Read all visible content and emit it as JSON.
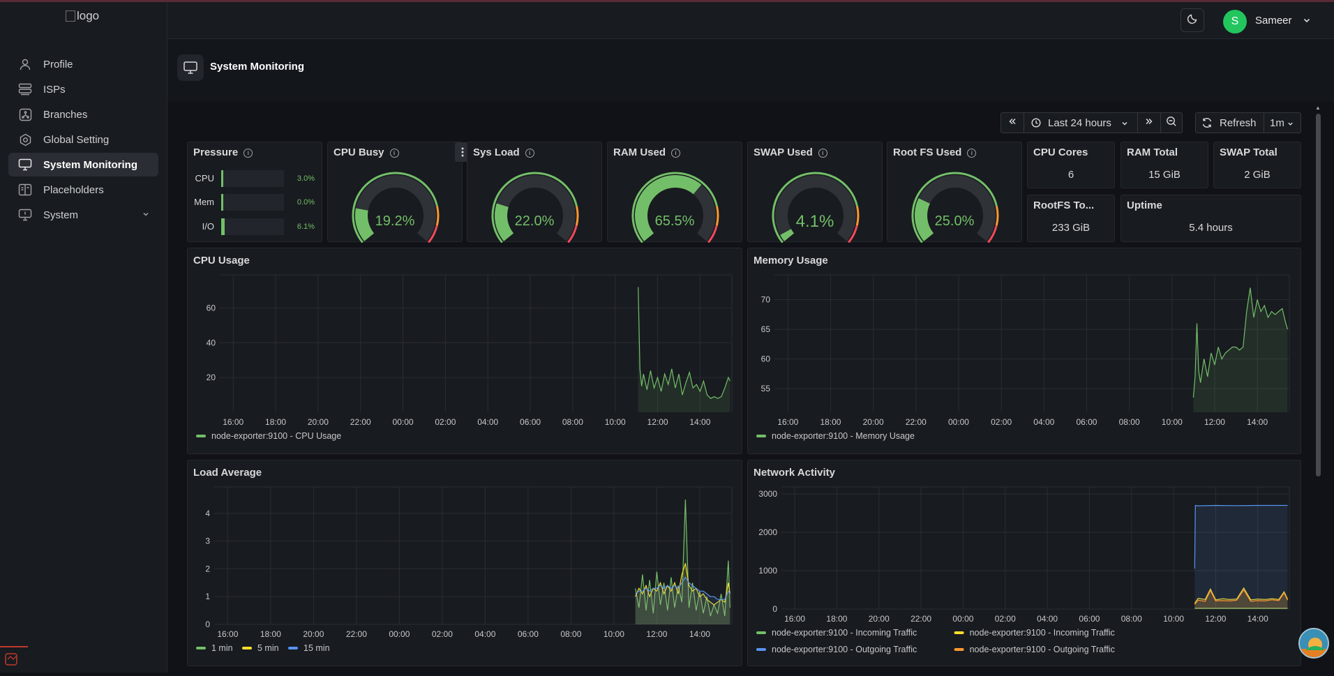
{
  "app": {
    "logo_alt": "logo",
    "user": {
      "initial": "S",
      "name": "Sameer"
    }
  },
  "sidebar": {
    "items": [
      {
        "label": "Profile",
        "icon": "user-icon"
      },
      {
        "label": "ISPs",
        "icon": "server-icon"
      },
      {
        "label": "Branches",
        "icon": "branches-icon"
      },
      {
        "label": "Global Setting",
        "icon": "gear-icon"
      },
      {
        "label": "System Monitoring",
        "icon": "monitor-icon",
        "active": true
      },
      {
        "label": "Placeholders",
        "icon": "placeholders-icon"
      },
      {
        "label": "System",
        "icon": "system-icon",
        "expandable": true
      }
    ]
  },
  "page": {
    "title": "System Monitoring"
  },
  "toolbar": {
    "time_range": "Last 24 hours",
    "refresh_label": "Refresh",
    "refresh_interval": "1m"
  },
  "pressure": {
    "title": "Pressure",
    "rows": [
      {
        "label": "CPU",
        "value": "3.0%",
        "fraction": 0.03
      },
      {
        "label": "Mem",
        "value": "0.0%",
        "fraction": 0.0
      },
      {
        "label": "I/O",
        "value": "6.1%",
        "fraction": 0.061
      }
    ]
  },
  "gauges": [
    {
      "title": "CPU Busy",
      "value": "19.2%",
      "fraction": 0.192
    },
    {
      "title": "Sys Load",
      "value": "22.0%",
      "fraction": 0.22
    },
    {
      "title": "RAM Used",
      "value": "65.5%",
      "fraction": 0.655
    },
    {
      "title": "SWAP Used",
      "value": "4.1%",
      "fraction": 0.041
    },
    {
      "title": "Root FS Used",
      "value": "25.0%",
      "fraction": 0.25
    }
  ],
  "stats": {
    "cpu_cores": {
      "title": "CPU Cores",
      "value": "6"
    },
    "ram_total": {
      "title": "RAM Total",
      "value": "15 GiB"
    },
    "swap_total": {
      "title": "SWAP Total",
      "value": "2 GiB"
    },
    "rootfs_total": {
      "title": "RootFS To...",
      "value": "233 GiB"
    },
    "uptime": {
      "title": "Uptime",
      "value": "5.4 hours"
    }
  },
  "colors": {
    "green": "#73bf69",
    "yellow": "#fade2a",
    "blue": "#5794f2",
    "orange": "#ff9830",
    "red": "#f2495c"
  },
  "chart_data": [
    {
      "type": "line",
      "title": "CPU Usage",
      "x_ticks": [
        "16:00",
        "18:00",
        "20:00",
        "22:00",
        "00:00",
        "02:00",
        "04:00",
        "06:00",
        "08:00",
        "10:00",
        "12:00",
        "14:00"
      ],
      "y_ticks": [
        20,
        40,
        60
      ],
      "ylim": [
        0,
        75
      ],
      "series": [
        {
          "name": "node-exporter:9100 - CPU Usage",
          "color": "#73bf69",
          "x": [
            "11:05",
            "11:10",
            "11:15",
            "11:20",
            "11:30",
            "11:40",
            "11:50",
            "12:00",
            "12:10",
            "12:20",
            "12:30",
            "12:40",
            "12:50",
            "13:00",
            "13:10",
            "13:20",
            "13:30",
            "13:40",
            "13:50",
            "14:00",
            "14:10",
            "14:20",
            "14:30",
            "14:40",
            "14:50",
            "15:00",
            "15:10",
            "15:20",
            "15:25"
          ],
          "y": [
            72,
            25,
            15,
            22,
            13,
            24,
            14,
            20,
            12,
            22,
            16,
            25,
            14,
            22,
            10,
            17,
            23,
            14,
            16,
            12,
            18,
            10,
            8,
            9,
            8,
            9,
            14,
            20,
            18
          ]
        }
      ],
      "legend": "bottom-left"
    },
    {
      "type": "line",
      "title": "Memory Usage",
      "x_ticks": [
        "16:00",
        "18:00",
        "20:00",
        "22:00",
        "00:00",
        "02:00",
        "04:00",
        "06:00",
        "08:00",
        "10:00",
        "12:00",
        "14:00"
      ],
      "y_ticks": [
        55,
        60,
        65,
        70
      ],
      "ylim": [
        51,
        73
      ],
      "series": [
        {
          "name": "node-exporter:9100 - Memory Usage",
          "color": "#73bf69",
          "x": [
            "11:00",
            "11:05",
            "11:10",
            "11:15",
            "11:20",
            "11:30",
            "11:40",
            "11:50",
            "12:00",
            "12:10",
            "12:20",
            "12:30",
            "12:40",
            "12:50",
            "13:00",
            "13:10",
            "13:20",
            "13:30",
            "13:40",
            "13:50",
            "14:00",
            "14:10",
            "14:20",
            "14:30",
            "14:40",
            "14:50",
            "15:00",
            "15:10",
            "15:20",
            "15:25"
          ],
          "y": [
            53.5,
            57,
            66,
            58,
            56,
            60,
            57,
            61,
            59,
            62,
            60,
            61,
            61.5,
            62,
            62,
            61.5,
            62,
            68,
            72,
            67,
            70,
            68,
            69,
            67,
            68,
            67.5,
            68,
            68.5,
            66,
            65
          ]
        }
      ],
      "legend": "bottom-left"
    },
    {
      "type": "line",
      "title": "Load Average",
      "x_ticks": [
        "16:00",
        "18:00",
        "20:00",
        "22:00",
        "00:00",
        "02:00",
        "04:00",
        "06:00",
        "08:00",
        "10:00",
        "12:00",
        "14:00"
      ],
      "y_ticks": [
        0,
        1,
        2,
        3,
        4
      ],
      "ylim": [
        0,
        4.7
      ],
      "series": [
        {
          "name": "1 min",
          "color": "#73bf69",
          "x": [
            "11:00",
            "11:10",
            "11:20",
            "11:30",
            "11:40",
            "11:50",
            "12:00",
            "12:10",
            "12:20",
            "12:30",
            "12:40",
            "12:50",
            "13:00",
            "13:10",
            "13:20",
            "13:30",
            "13:40",
            "13:50",
            "14:00",
            "14:10",
            "14:20",
            "14:30",
            "14:40",
            "14:50",
            "15:00",
            "15:10",
            "15:20",
            "15:25"
          ],
          "y": [
            1.3,
            0.6,
            1.8,
            0.5,
            1.6,
            0.4,
            1.9,
            0.7,
            1.5,
            0.5,
            1.7,
            0.6,
            1.4,
            0.8,
            4.5,
            0.6,
            1.5,
            0.5,
            1.2,
            0.4,
            1.0,
            0.3,
            0.7,
            0.4,
            1.1,
            0.3,
            2.3,
            0.6
          ]
        },
        {
          "name": "5 min",
          "color": "#fade2a",
          "x": [
            "11:00",
            "11:10",
            "11:20",
            "11:30",
            "11:40",
            "11:50",
            "12:00",
            "12:10",
            "12:20",
            "12:30",
            "12:40",
            "12:50",
            "13:00",
            "13:10",
            "13:20",
            "13:30",
            "13:40",
            "13:50",
            "14:00",
            "14:10",
            "14:20",
            "14:30",
            "14:40",
            "14:50",
            "15:00",
            "15:10",
            "15:20",
            "15:25"
          ],
          "y": [
            1.0,
            1.3,
            1.1,
            1.4,
            1.0,
            1.3,
            1.2,
            1.5,
            1.1,
            1.4,
            1.2,
            1.5,
            1.1,
            1.8,
            2.2,
            1.4,
            1.2,
            1.3,
            1.0,
            1.1,
            0.9,
            0.8,
            0.7,
            0.8,
            0.9,
            0.8,
            1.5,
            1.1
          ]
        },
        {
          "name": "15 min",
          "color": "#5794f2",
          "x": [
            "11:00",
            "11:10",
            "11:20",
            "11:30",
            "11:40",
            "11:50",
            "12:00",
            "12:10",
            "12:20",
            "12:30",
            "12:40",
            "12:50",
            "13:00",
            "13:10",
            "13:20",
            "13:30",
            "13:40",
            "13:50",
            "14:00",
            "14:10",
            "14:20",
            "14:30",
            "14:40",
            "14:50",
            "15:00",
            "15:10",
            "15:20",
            "15:25"
          ],
          "y": [
            1.1,
            1.2,
            1.2,
            1.3,
            1.2,
            1.3,
            1.3,
            1.4,
            1.3,
            1.4,
            1.3,
            1.4,
            1.3,
            1.5,
            1.7,
            1.5,
            1.4,
            1.3,
            1.2,
            1.2,
            1.1,
            1.0,
            1.0,
            0.9,
            0.9,
            0.9,
            1.2,
            1.1
          ]
        }
      ],
      "legend": "bottom-left"
    },
    {
      "type": "line",
      "title": "Network Activity",
      "x_ticks": [
        "16:00",
        "18:00",
        "20:00",
        "22:00",
        "00:00",
        "02:00",
        "04:00",
        "06:00",
        "08:00",
        "10:00",
        "12:00",
        "14:00"
      ],
      "y_ticks": [
        0,
        1000,
        2000,
        3000
      ],
      "ylim": [
        0,
        3000
      ],
      "series": [
        {
          "name": "node-exporter:9100 - Incoming Traffic",
          "color": "#73bf69",
          "x": [
            "11:00",
            "15:25"
          ],
          "y": [
            20,
            20
          ]
        },
        {
          "name": "node-exporter:9100 - Incoming Traffic",
          "color": "#fade2a",
          "x": [
            "11:00",
            "11:10",
            "11:30",
            "11:45",
            "12:00",
            "12:20",
            "12:40",
            "13:00",
            "13:20",
            "13:40",
            "14:00",
            "14:20",
            "14:40",
            "15:00",
            "15:15",
            "15:25"
          ],
          "y": [
            150,
            280,
            250,
            520,
            240,
            270,
            250,
            260,
            550,
            240,
            260,
            250,
            270,
            250,
            450,
            260
          ]
        },
        {
          "name": "node-exporter:9100 - Outgoing Traffic",
          "color": "#5794f2",
          "x": [
            "11:00",
            "11:02",
            "11:10",
            "12:00",
            "13:00",
            "14:00",
            "15:00",
            "15:25"
          ],
          "y": [
            1050,
            2700,
            2690,
            2700,
            2695,
            2700,
            2700,
            2700
          ]
        },
        {
          "name": "node-exporter:9100 - Outgoing Traffic",
          "color": "#ff9830",
          "x": [
            "11:00",
            "11:10",
            "11:30",
            "11:45",
            "12:00",
            "12:20",
            "12:40",
            "13:00",
            "13:20",
            "13:40",
            "14:00",
            "14:20",
            "14:40",
            "15:00",
            "15:15",
            "15:25"
          ],
          "y": [
            120,
            230,
            200,
            480,
            210,
            220,
            210,
            230,
            500,
            200,
            220,
            210,
            240,
            220,
            420,
            230
          ]
        }
      ],
      "legend": "bottom-left"
    }
  ]
}
